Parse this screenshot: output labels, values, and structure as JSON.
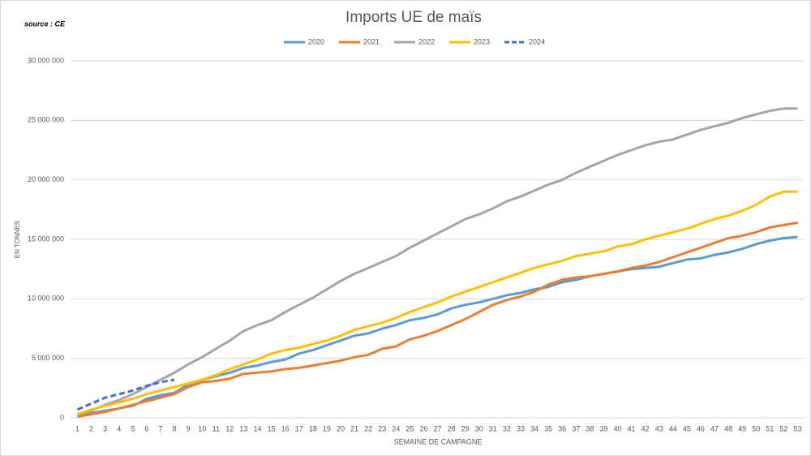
{
  "chart_data": {
    "type": "line",
    "title": "Imports UE de maïs",
    "source": "source : CE",
    "y_label": "EN TONNES",
    "x_label": "SEMAINE DE CAMPAGNE",
    "categories": [
      1,
      2,
      3,
      4,
      5,
      6,
      7,
      8,
      9,
      10,
      11,
      12,
      13,
      14,
      15,
      16,
      17,
      18,
      19,
      20,
      21,
      22,
      23,
      24,
      25,
      26,
      27,
      28,
      29,
      30,
      31,
      32,
      33,
      34,
      35,
      36,
      37,
      38,
      39,
      40,
      41,
      42,
      43,
      44,
      45,
      46,
      47,
      48,
      49,
      50,
      51,
      52,
      53
    ],
    "ylim": [
      0,
      30000000
    ],
    "yticks": [
      0,
      {
        "value": 5000000,
        "label": "5 000 000"
      },
      {
        "value": 10000000,
        "label": "10 000 000"
      },
      {
        "value": 15000000,
        "label": "15 000 000"
      },
      {
        "value": 20000000,
        "label": "20 000 000"
      },
      {
        "value": 25000000,
        "label": "25 000 000"
      },
      {
        "value": 30000000,
        "label": "30 000 000"
      }
    ],
    "grid": true,
    "legend": "top",
    "series": [
      {
        "name": "2020",
        "color": "#5b9bd5",
        "style": "solid",
        "values": [
          200000,
          400000,
          600000,
          800000,
          1000000,
          1600000,
          1900000,
          2100000,
          2800000,
          3200000,
          3500000,
          3800000,
          4200000,
          4400000,
          4700000,
          4900000,
          5400000,
          5700000,
          6100000,
          6500000,
          6900000,
          7100000,
          7500000,
          7800000,
          8200000,
          8400000,
          8700000,
          9200000,
          9500000,
          9700000,
          10000000,
          10300000,
          10500000,
          10800000,
          11000000,
          11400000,
          11600000,
          11900000,
          12100000,
          12300000,
          12500000,
          12600000,
          12700000,
          13000000,
          13300000,
          13400000,
          13700000,
          13900000,
          14200000,
          14600000,
          14900000,
          15100000,
          15200000
        ]
      },
      {
        "name": "2021",
        "color": "#ed7d31",
        "style": "solid",
        "values": [
          100000,
          300000,
          500000,
          800000,
          1100000,
          1400000,
          1700000,
          2000000,
          2600000,
          3000000,
          3100000,
          3300000,
          3700000,
          3800000,
          3900000,
          4100000,
          4200000,
          4400000,
          4600000,
          4800000,
          5100000,
          5300000,
          5800000,
          6000000,
          6600000,
          6900000,
          7300000,
          7800000,
          8300000,
          8900000,
          9500000,
          9900000,
          10200000,
          10600000,
          11200000,
          11600000,
          11800000,
          11900000,
          12100000,
          12300000,
          12600000,
          12800000,
          13100000,
          13500000,
          13900000,
          14300000,
          14700000,
          15100000,
          15300000,
          15600000,
          16000000,
          16200000,
          16400000
        ]
      },
      {
        "name": "2022",
        "color": "#a5a5a5",
        "style": "solid",
        "values": [
          300000,
          600000,
          1100000,
          1500000,
          2000000,
          2600000,
          3200000,
          3800000,
          4500000,
          5100000,
          5800000,
          6500000,
          7300000,
          7800000,
          8200000,
          8900000,
          9500000,
          10100000,
          10800000,
          11500000,
          12100000,
          12600000,
          13100000,
          13600000,
          14300000,
          14900000,
          15500000,
          16100000,
          16700000,
          17100000,
          17600000,
          18200000,
          18600000,
          19100000,
          19600000,
          20000000,
          20600000,
          21100000,
          21600000,
          22100000,
          22500000,
          22900000,
          23200000,
          23400000,
          23800000,
          24200000,
          24500000,
          24800000,
          25200000,
          25500000,
          25800000,
          26000000,
          26000000
        ]
      },
      {
        "name": "2023",
        "color": "#ffc000",
        "style": "solid",
        "values": [
          300000,
          700000,
          1000000,
          1300000,
          1600000,
          2000000,
          2300000,
          2600000,
          2900000,
          3200000,
          3600000,
          4100000,
          4500000,
          4900000,
          5400000,
          5700000,
          5900000,
          6200000,
          6500000,
          6900000,
          7400000,
          7700000,
          8000000,
          8400000,
          8900000,
          9300000,
          9700000,
          10200000,
          10600000,
          11000000,
          11400000,
          11800000,
          12200000,
          12600000,
          12900000,
          13200000,
          13600000,
          13800000,
          14000000,
          14400000,
          14600000,
          15000000,
          15300000,
          15600000,
          15900000,
          16300000,
          16700000,
          17000000,
          17400000,
          17900000,
          18600000,
          19000000,
          19000000
        ]
      },
      {
        "name": "2024",
        "color": "#4472c4",
        "style": "dashed",
        "values": [
          700000,
          1200000,
          1700000,
          2000000,
          2300000,
          2700000,
          3000000,
          3200000,
          null,
          null,
          null,
          null,
          null,
          null,
          null,
          null,
          null,
          null,
          null,
          null,
          null,
          null,
          null,
          null,
          null,
          null,
          null,
          null,
          null,
          null,
          null,
          null,
          null,
          null,
          null,
          null,
          null,
          null,
          null,
          null,
          null,
          null,
          null,
          null,
          null,
          null,
          null,
          null,
          null,
          null,
          null,
          null,
          null
        ]
      }
    ]
  }
}
